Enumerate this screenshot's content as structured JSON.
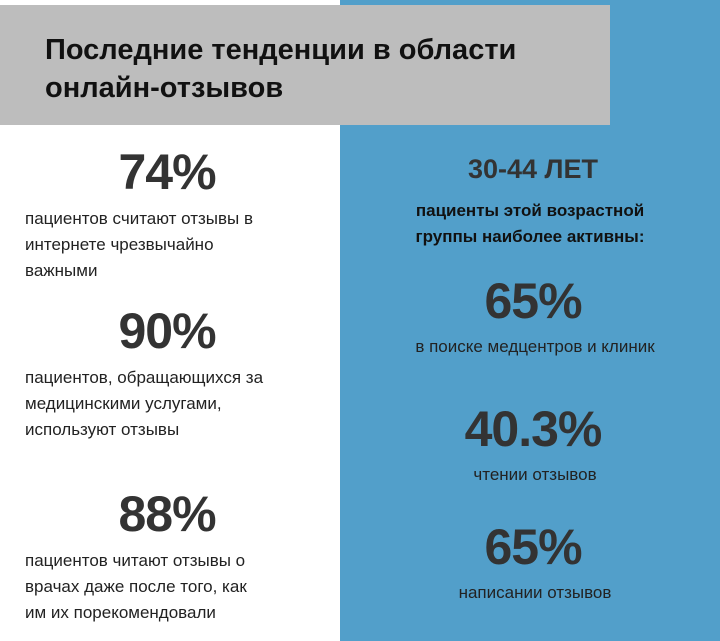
{
  "header": {
    "title": [
      "Последние тенденции в области",
      "онлайн-отзывов"
    ]
  },
  "left": {
    "stats": [
      {
        "value": "74%",
        "text": [
          "пациентов считают отзывы в",
          "интернете чрезвычайно",
          "важными"
        ]
      },
      {
        "value": "90%",
        "text": [
          "пациентов, обращающихся за",
          "медицинскими услугами,",
          "используют отзывы"
        ]
      },
      {
        "value": "88%",
        "text": [
          "пациентов читают отзывы о",
          "врачах даже после того, как",
          "им их порекомендовали"
        ]
      }
    ]
  },
  "right": {
    "heading": "30-44 ЛЕТ",
    "subheading": [
      "пациенты этой возрастной",
      "группы наиболее активны:"
    ],
    "stats": [
      {
        "value": "65%",
        "text": "в поиске медцентров и клиник"
      },
      {
        "value": "40.3%",
        "text": "чтении отзывов"
      },
      {
        "value": "65%",
        "text": "написании отзывов"
      }
    ]
  }
}
